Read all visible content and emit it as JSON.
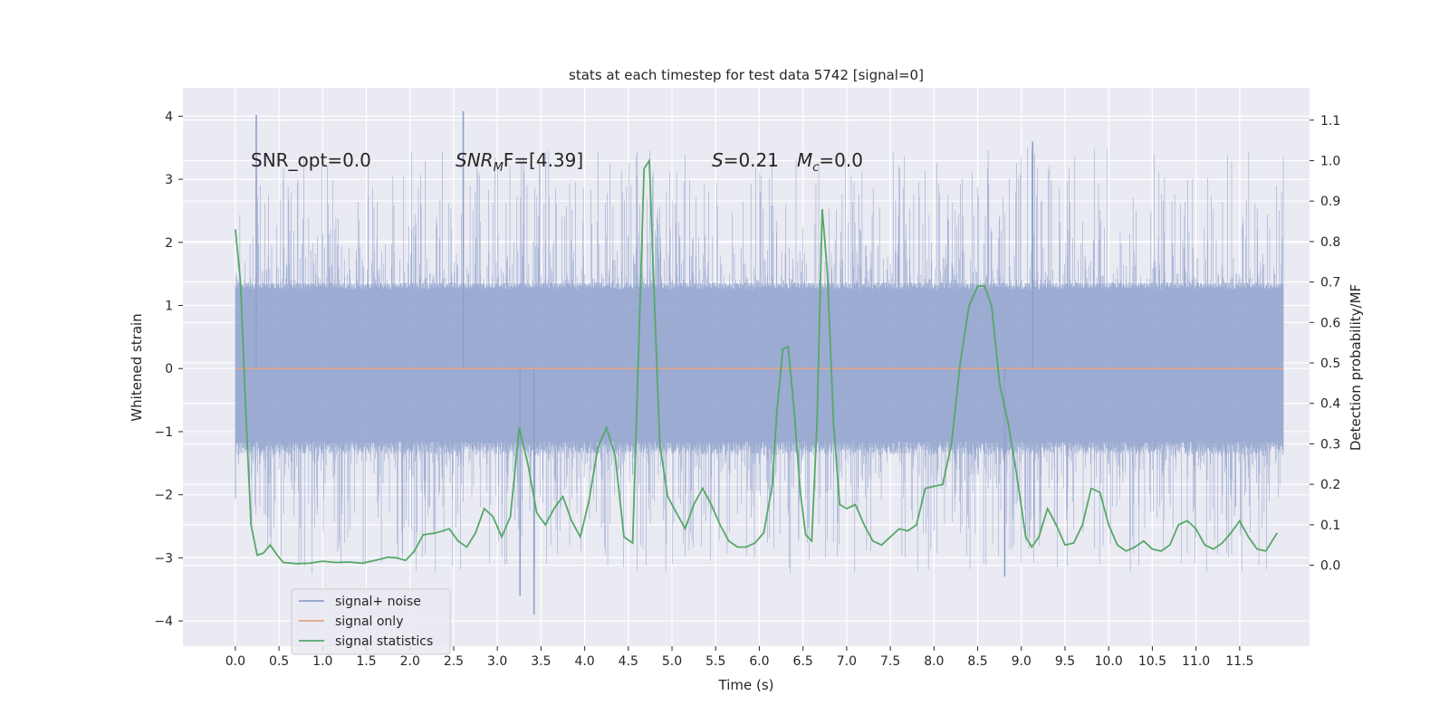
{
  "chart_data": {
    "type": "line",
    "title": "stats at each timestep for test data 5742 [signal=0]",
    "xlabel": "Time (s)",
    "ylabel_left": "Whitened strain",
    "ylabel_right": "Detection probability/MF",
    "xlim": [
      -0.6,
      12.3
    ],
    "ylim_left": [
      -4.4,
      4.45
    ],
    "ylim_right": [
      -0.2,
      1.18
    ],
    "x_ticks": [
      "0.0",
      "0.5",
      "1.0",
      "1.5",
      "2.0",
      "2.5",
      "3.0",
      "3.5",
      "4.0",
      "4.5",
      "5.0",
      "5.5",
      "6.0",
      "6.5",
      "7.0",
      "7.5",
      "8.0",
      "8.5",
      "9.0",
      "9.5",
      "10.0",
      "10.5",
      "11.0",
      "11.5"
    ],
    "y_ticks_left": [
      "4",
      "3",
      "2",
      "1",
      "0",
      "−1",
      "−2",
      "−3",
      "−4"
    ],
    "y_ticks_right": [
      "1.1",
      "1.0",
      "0.9",
      "0.8",
      "0.7",
      "0.6",
      "0.5",
      "0.4",
      "0.3",
      "0.2",
      "0.1",
      "0.0"
    ],
    "grid": true,
    "legend_position": "lower-left",
    "annotations": {
      "snr_opt": "SNR_opt=0.0",
      "snr_mf_base": "SNR",
      "snr_mf_sub": "M",
      "snr_mf_rest": "F=[4.39]",
      "s_var": "S",
      "s_val": "=0.21",
      "mc_var": "M",
      "mc_sub": "c",
      "mc_val": "=0.0"
    },
    "series": [
      {
        "name": "signal+ noise",
        "color": "#8da0cb",
        "axis": "left",
        "description_of_values": "noise trace, bulk within about ±1.35, spikes to about ±4",
        "notable_peaks": [
          {
            "x": 0.24,
            "y": 4.02
          },
          {
            "x": 2.61,
            "y": 4.08
          },
          {
            "x": 9.13,
            "y": 3.6
          },
          {
            "x": 3.42,
            "y": -3.9
          },
          {
            "x": 3.26,
            "y": -3.6
          },
          {
            "x": 8.81,
            "y": -3.3
          }
        ]
      },
      {
        "name": "signal only",
        "color": "#e5a486",
        "axis": "left",
        "x": [
          0.0,
          12.0
        ],
        "y": [
          0.0,
          0.0
        ]
      },
      {
        "name": "signal statistics",
        "color": "#55a868",
        "axis": "right",
        "x": [
          0.0,
          0.06,
          0.12,
          0.18,
          0.25,
          0.32,
          0.4,
          0.48,
          0.55,
          0.7,
          0.85,
          1.0,
          1.15,
          1.3,
          1.45,
          1.6,
          1.75,
          1.85,
          1.95,
          2.05,
          2.15,
          2.3,
          2.45,
          2.55,
          2.65,
          2.75,
          2.85,
          2.95,
          3.05,
          3.15,
          3.25,
          3.35,
          3.45,
          3.55,
          3.65,
          3.75,
          3.85,
          3.95,
          4.05,
          4.15,
          4.25,
          4.35,
          4.45,
          4.55,
          4.62,
          4.68,
          4.74,
          4.8,
          4.86,
          4.95,
          5.05,
          5.15,
          5.25,
          5.35,
          5.45,
          5.55,
          5.65,
          5.75,
          5.85,
          5.95,
          6.05,
          6.15,
          6.2,
          6.27,
          6.33,
          6.4,
          6.47,
          6.53,
          6.6,
          6.66,
          6.72,
          6.78,
          6.85,
          6.92,
          7.0,
          7.1,
          7.2,
          7.3,
          7.4,
          7.5,
          7.6,
          7.7,
          7.8,
          7.9,
          8.0,
          8.1,
          8.2,
          8.3,
          8.4,
          8.5,
          8.58,
          8.66,
          8.75,
          8.85,
          8.95,
          9.05,
          9.12,
          9.2,
          9.3,
          9.4,
          9.5,
          9.6,
          9.7,
          9.8,
          9.9,
          10.0,
          10.1,
          10.2,
          10.3,
          10.4,
          10.5,
          10.6,
          10.7,
          10.8,
          10.9,
          11.0,
          11.1,
          11.2,
          11.3,
          11.4,
          11.5,
          11.6,
          11.7,
          11.8,
          11.93
        ],
        "y": [
          0.83,
          0.7,
          0.38,
          0.1,
          0.025,
          0.03,
          0.05,
          0.025,
          0.007,
          0.004,
          0.005,
          0.01,
          0.007,
          0.008,
          0.005,
          0.012,
          0.02,
          0.018,
          0.012,
          0.035,
          0.075,
          0.08,
          0.09,
          0.06,
          0.045,
          0.08,
          0.14,
          0.12,
          0.07,
          0.12,
          0.34,
          0.25,
          0.13,
          0.1,
          0.14,
          0.17,
          0.11,
          0.07,
          0.16,
          0.29,
          0.34,
          0.27,
          0.07,
          0.055,
          0.55,
          0.98,
          1.0,
          0.65,
          0.3,
          0.17,
          0.13,
          0.09,
          0.15,
          0.19,
          0.15,
          0.1,
          0.06,
          0.045,
          0.045,
          0.055,
          0.08,
          0.2,
          0.38,
          0.535,
          0.54,
          0.38,
          0.18,
          0.075,
          0.06,
          0.35,
          0.88,
          0.72,
          0.35,
          0.15,
          0.14,
          0.15,
          0.1,
          0.06,
          0.05,
          0.07,
          0.09,
          0.085,
          0.1,
          0.19,
          0.195,
          0.2,
          0.3,
          0.5,
          0.64,
          0.69,
          0.69,
          0.64,
          0.45,
          0.35,
          0.22,
          0.07,
          0.045,
          0.07,
          0.14,
          0.1,
          0.05,
          0.055,
          0.1,
          0.19,
          0.18,
          0.1,
          0.05,
          0.035,
          0.045,
          0.06,
          0.04,
          0.035,
          0.05,
          0.1,
          0.11,
          0.09,
          0.05,
          0.04,
          0.055,
          0.08,
          0.11,
          0.07,
          0.04,
          0.035,
          0.08
        ]
      }
    ]
  }
}
